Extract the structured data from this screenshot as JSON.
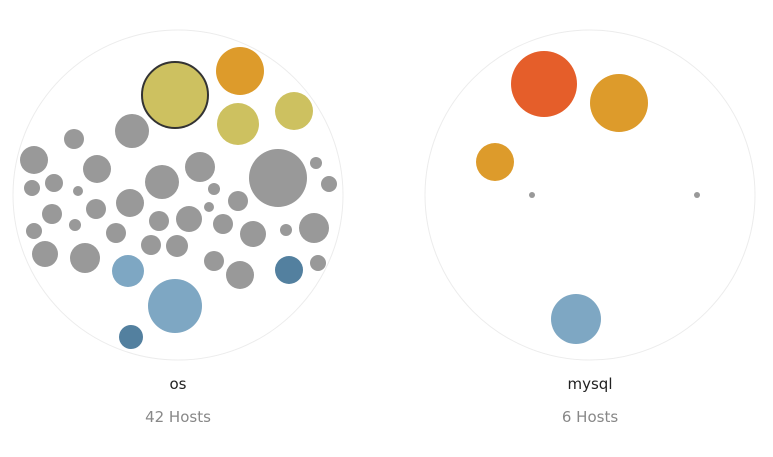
{
  "colors": {
    "neutral": "#999999",
    "olive": "#cdc160",
    "amber": "#dd9b2b",
    "orange": "#e55e2a",
    "steel-light": "#7ea7c3",
    "steel-dark": "#53809f",
    "outline": "#ececec",
    "selected-stroke": "#333333"
  },
  "clusters": [
    {
      "name": "os",
      "count_label": "42 Hosts",
      "hosts": [
        {
          "color": "olive",
          "selected": true
        },
        {
          "color": "amber"
        },
        {
          "color": "olive"
        },
        {
          "color": "olive"
        },
        {
          "color": "steel-light"
        },
        {
          "color": "steel-light"
        },
        {
          "color": "steel-dark"
        },
        {
          "color": "steel-dark"
        },
        {
          "color": "neutral"
        },
        {
          "color": "neutral"
        },
        {
          "color": "neutral"
        },
        {
          "color": "neutral"
        },
        {
          "color": "neutral"
        },
        {
          "color": "neutral"
        },
        {
          "color": "neutral"
        },
        {
          "color": "neutral"
        },
        {
          "color": "neutral"
        },
        {
          "color": "neutral"
        },
        {
          "color": "neutral"
        },
        {
          "color": "neutral"
        },
        {
          "color": "neutral"
        },
        {
          "color": "neutral"
        },
        {
          "color": "neutral"
        },
        {
          "color": "neutral"
        },
        {
          "color": "neutral"
        },
        {
          "color": "neutral"
        },
        {
          "color": "neutral"
        },
        {
          "color": "neutral"
        },
        {
          "color": "neutral"
        },
        {
          "color": "neutral"
        },
        {
          "color": "neutral"
        },
        {
          "color": "neutral"
        },
        {
          "color": "neutral"
        },
        {
          "color": "neutral"
        },
        {
          "color": "neutral"
        },
        {
          "color": "neutral"
        },
        {
          "color": "neutral"
        },
        {
          "color": "neutral"
        },
        {
          "color": "neutral"
        },
        {
          "color": "neutral"
        },
        {
          "color": "neutral"
        },
        {
          "color": "neutral"
        }
      ]
    },
    {
      "name": "mysql",
      "count_label": "6 Hosts",
      "hosts": [
        {
          "color": "orange"
        },
        {
          "color": "amber"
        },
        {
          "color": "amber"
        },
        {
          "color": "steel-light"
        },
        {
          "color": "neutral"
        },
        {
          "color": "neutral"
        }
      ]
    }
  ]
}
